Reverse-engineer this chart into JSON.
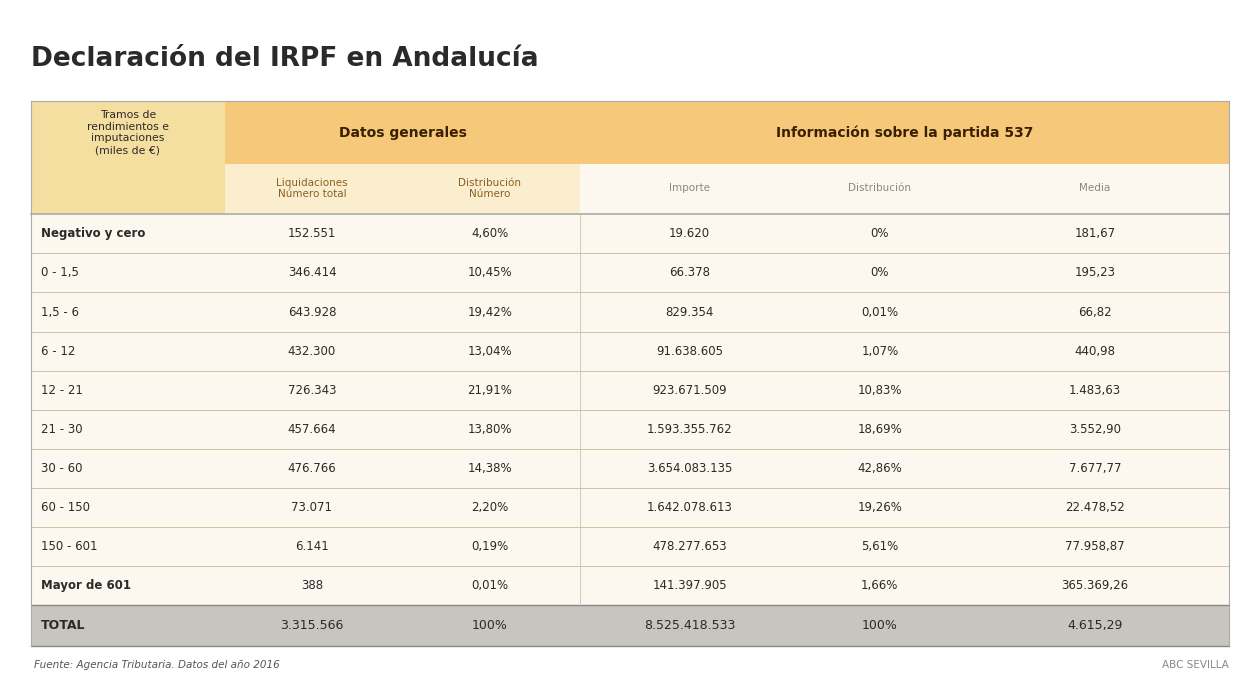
{
  "title": "Declaración del IRPF en Andalucía",
  "col1_header": "Tramos de\nrendimientos e\nimputaciones\n(miles de €)",
  "group1_header": "Datos generales",
  "group2_header": "Información sobre la partida 537",
  "subheaders": [
    "Liquidaciones\nNúmero total",
    "Distribución\nNúmero",
    "Importe",
    "Distribución",
    "Media"
  ],
  "rows": [
    [
      "Negativo y cero",
      "152.551",
      "4,60%",
      "19.620",
      "0%",
      "181,67"
    ],
    [
      "0 - 1,5",
      "346.414",
      "10,45%",
      "66.378",
      "0%",
      "195,23"
    ],
    [
      "1,5 - 6",
      "643.928",
      "19,42%",
      "829.354",
      "0,01%",
      "66,82"
    ],
    [
      "6 - 12",
      "432.300",
      "13,04%",
      "91.638.605",
      "1,07%",
      "440,98"
    ],
    [
      "12 - 21",
      "726.343",
      "21,91%",
      "923.671.509",
      "10,83%",
      "1.483,63"
    ],
    [
      "21 - 30",
      "457.664",
      "13,80%",
      "1.593.355.762",
      "18,69%",
      "3.552,90"
    ],
    [
      "30 - 60",
      "476.766",
      "14,38%",
      "3.654.083.135",
      "42,86%",
      "7.677,77"
    ],
    [
      "60 - 150",
      "73.071",
      "2,20%",
      "1.642.078.613",
      "19,26%",
      "22.478,52"
    ],
    [
      "150 - 601",
      "6.141",
      "0,19%",
      "478.277.653",
      "5,61%",
      "77.958,87"
    ],
    [
      "Mayor de 601",
      "388",
      "0,01%",
      "141.397.905",
      "1,66%",
      "365.369,26"
    ]
  ],
  "total_row": [
    "TOTAL",
    "3.315.566",
    "100%",
    "8.525.418.533",
    "100%",
    "4.615,29"
  ],
  "bold_rows": [
    0,
    9
  ],
  "footer_left": "Fuente: Agencia Tributaria. Datos del año 2016",
  "footer_right": "ABC SEVILLA",
  "bg_color": "#ffffff",
  "group1_header_bg": "#f5c87a",
  "group2_header_bg": "#f5c87a",
  "col1_bg": "#f5dfa0",
  "subheader_bg1": "#fbeecf",
  "subheader_bg2": "#fdf8ef",
  "total_row_bg": "#c8c4c0",
  "data_row_bg": "#fdf8ef",
  "line_color": "#c8b898",
  "text_dark": "#2a2a2a",
  "text_white": "#ffffff",
  "text_header1": "#3a2000",
  "text_header2": "#3a2000",
  "text_subheader": "#8b6020",
  "text_gray": "#888888"
}
